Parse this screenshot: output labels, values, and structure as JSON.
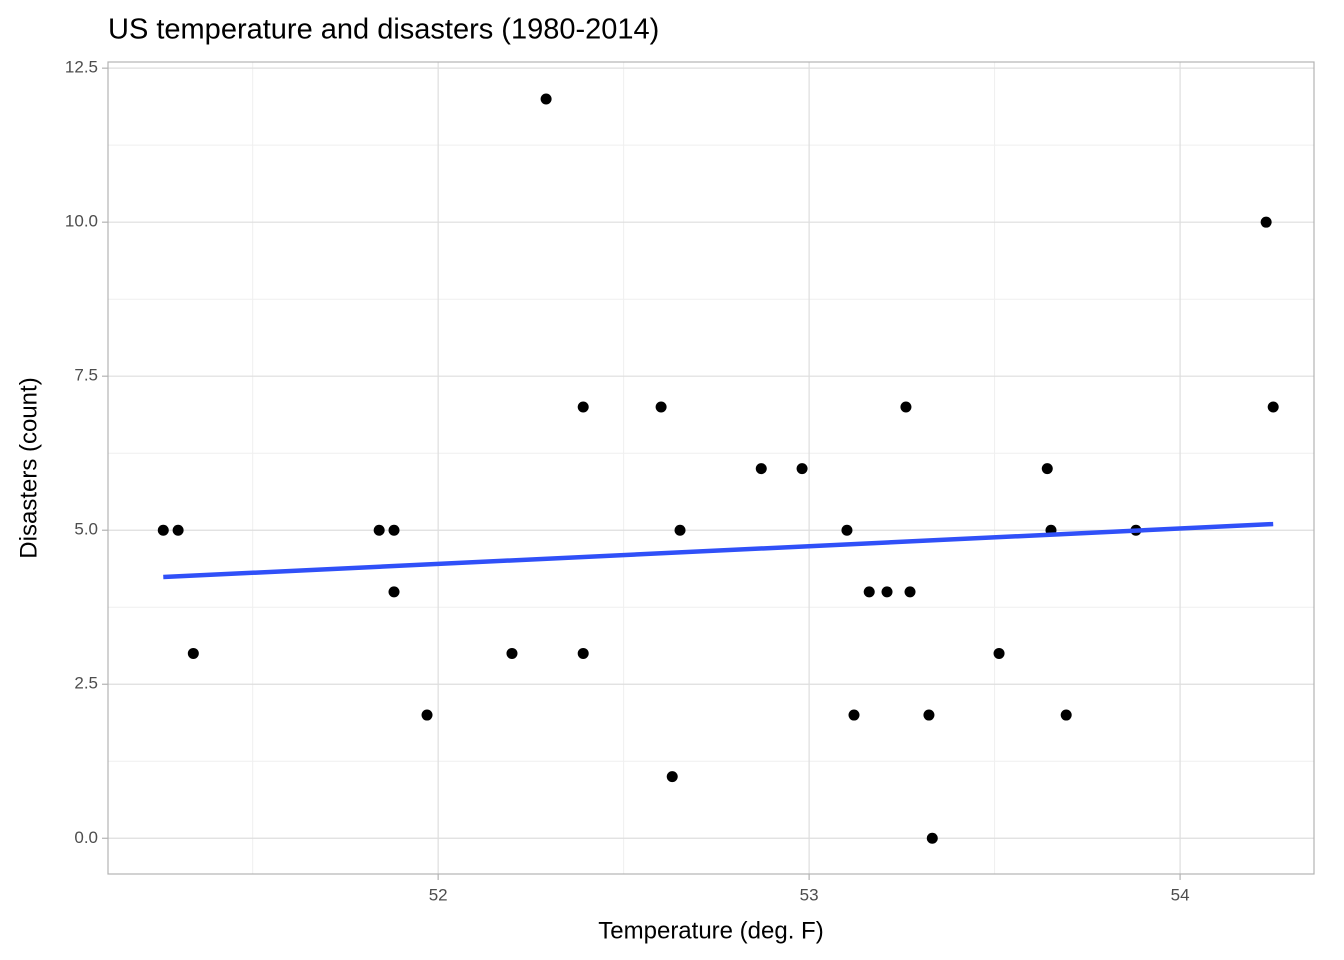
{
  "chart_data": {
    "type": "scatter",
    "title": "US temperature and disasters (1980-2014)",
    "x_label": "Temperature (deg. F)",
    "y_label": "Disasters (count)",
    "xlim": [
      51.11,
      54.361
    ],
    "ylim": [
      -0.58,
      12.6
    ],
    "xticks": [
      52,
      53,
      54
    ],
    "yticks": [
      {
        "value": 0,
        "label": "0.0"
      },
      2.5,
      {
        "value": 5,
        "label": "5.0"
      },
      7.5,
      {
        "value": 10,
        "label": "10.0"
      },
      12.5
    ],
    "xminor": [
      51.5,
      52.5,
      53.5
    ],
    "yminor": [
      1.25,
      3.75,
      6.25,
      8.75,
      11.25
    ],
    "grid": true,
    "series": [
      {
        "color": "#000000",
        "x": [
          51.259,
          51.299,
          51.34,
          51.841,
          51.881,
          51.881,
          51.97,
          52.199,
          52.291,
          52.391,
          52.391,
          52.601,
          52.631,
          52.652,
          52.871,
          52.981,
          53.102,
          53.121,
          53.162,
          53.21,
          53.261,
          53.272,
          53.323,
          53.332,
          53.512,
          53.642,
          53.652,
          53.693,
          53.881,
          54.232,
          54.251
        ],
        "values": [
          5,
          5,
          3,
          5,
          5,
          4,
          2,
          3,
          12,
          7,
          3,
          7,
          1,
          5,
          6,
          6,
          5,
          2,
          4,
          4,
          7,
          4,
          2,
          0,
          3,
          6,
          5,
          2,
          5,
          10,
          7
        ]
      }
    ],
    "trend": {
      "color": "#3050f8",
      "x": [
        51.259,
        54.251
      ],
      "values": [
        4.24,
        5.1
      ]
    }
  }
}
